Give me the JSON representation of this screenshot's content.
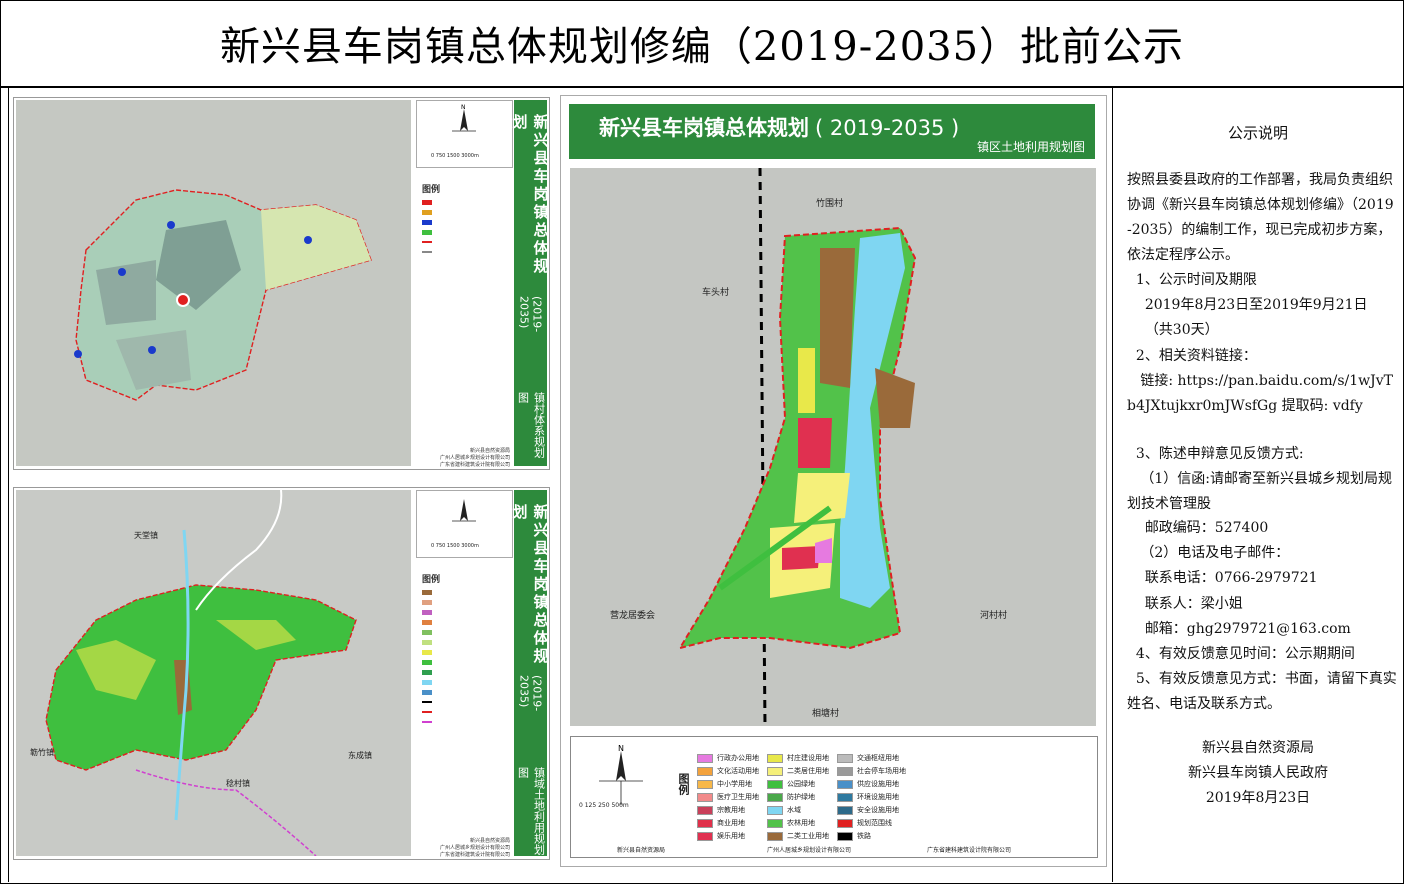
{
  "title": "新兴县车岗镇总体规划修编（2019-2035）批前公示",
  "panel_top_left": {
    "side_title": "新兴县车岗镇总体规划",
    "side_year": "(2019-2035)",
    "side_sub": "镇村体系规划图",
    "legend_title": "图例",
    "scale": "0   750  1500        3000m",
    "credits": [
      "新兴县自然资源局",
      "广州人居城乡规划设计有限公司",
      "广东省建科建筑设计院有限公司"
    ]
  },
  "panel_bottom_left": {
    "side_title": "新兴县车岗镇总体规划",
    "side_year": "(2019-2035)",
    "side_sub": "镇域土地利用规划图",
    "legend_title": "图例",
    "scale": "0   750  1500        3000m",
    "map_labels": [
      "簕竹镇",
      "东成镇",
      "稔村镇",
      "天堂镇"
    ],
    "credits": [
      "新兴县自然资源局",
      "广州人居城乡规划设计有限公司",
      "广东省建科建筑设计院有限公司"
    ]
  },
  "main_map": {
    "title": "新兴县车岗镇总体规划",
    "year": "( 2019-2035 )",
    "subtitle": "镇区土地利用规划图",
    "place_labels": [
      "竹围村",
      "车头村",
      "营龙居委会",
      "河村村",
      "相塘村"
    ],
    "legend_title": "图例",
    "scale": "0    125   250          500m",
    "legend_items": [
      {
        "label": "行政办公用地",
        "color": "#e67ae0"
      },
      {
        "label": "文化活动用地",
        "color": "#f3a23c"
      },
      {
        "label": "中小学用地",
        "color": "#f7b84a"
      },
      {
        "label": "医疗卫生用地",
        "color": "#f28a8a"
      },
      {
        "label": "宗教用地",
        "color": "#c9405a"
      },
      {
        "label": "商业用地",
        "color": "#e0304a"
      },
      {
        "label": "娱乐用地",
        "color": "#e03050"
      },
      {
        "label": "村庄建设用地",
        "color": "#e8e84a"
      },
      {
        "label": "二类居住用地",
        "color": "#f5f07a"
      },
      {
        "label": "公园绿地",
        "color": "#3fbf3f"
      },
      {
        "label": "防护绿地",
        "color": "#4aa84a"
      },
      {
        "label": "水域",
        "color": "#7fd6f2"
      },
      {
        "label": "农林用地",
        "color": "#52c24a"
      },
      {
        "label": "二类工业用地",
        "color": "#9a6a3a"
      },
      {
        "label": "交通枢纽用地",
        "color": "#bbbbbb"
      },
      {
        "label": "社会停车场用地",
        "color": "#9a9a9a"
      },
      {
        "label": "供应设施用地",
        "color": "#4a90c8"
      },
      {
        "label": "环境设施用地",
        "color": "#2f7aa0"
      },
      {
        "label": "安全设施用地",
        "color": "#2d6a8a"
      },
      {
        "label": "规划范围线",
        "color": "#e02020"
      },
      {
        "label": "铁路",
        "color": "#000000"
      }
    ],
    "credits": [
      "新兴县自然资源局",
      "广州人居城乡规划设计有限公司",
      "广东省建科建筑设计院有限公司"
    ]
  },
  "notice": {
    "title": "公示说明",
    "paragraphs": [
      "按照县委县政府的工作部署，我局负责组织协调《新兴县车岗镇总体规划修编》（2019-2035）的编制工作，现已完成初步方案，依法定程序公示。",
      "  1、公示时间及期限",
      "    2019年8月23日至2019年9月21日",
      "    （共30天）",
      "  2、相关资料链接：",
      "   链接: https://pan.baidu.com/s/1wJvTb4JXtujkxr0mJWsfGg 提取码: vdfy",
      "  3、陈述申辩意见反馈方式:",
      "   （1）信函:请邮寄至新兴县城乡规划局规划技术管理股",
      "    邮政编码：527400",
      "   （2）电话及电子邮件：",
      "    联系电话：0766-2979721",
      "    联系人：梁小姐",
      "    邮箱：ghg2979721@163.com",
      "  4、有效反馈意见时间：公示期期间",
      "  5、有效反馈意见方式：书面，请留下真实姓名、电话及联系方式。"
    ],
    "sign_org1": "新兴县自然资源局",
    "sign_org2": "新兴县车岗镇人民政府",
    "sign_date": "2019年8月23日"
  }
}
